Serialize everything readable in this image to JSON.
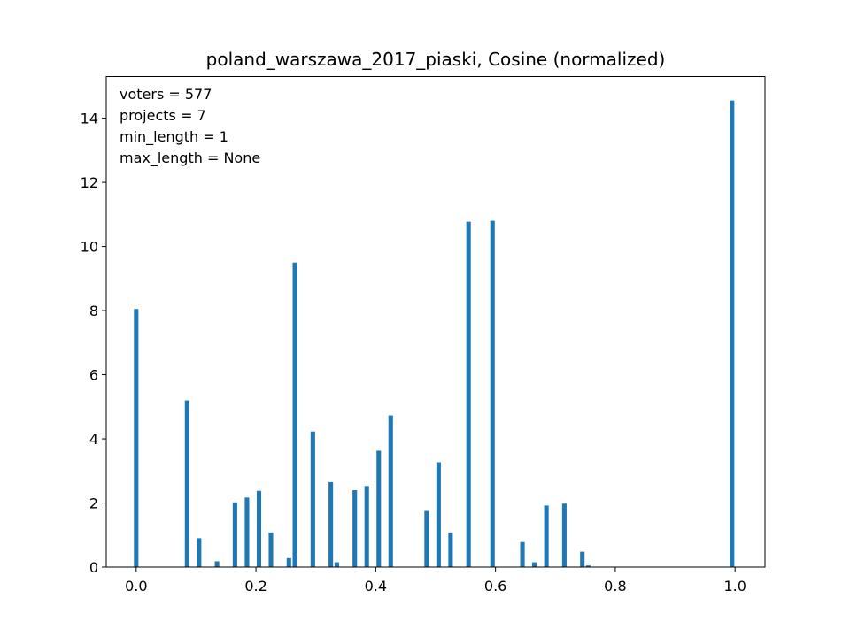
{
  "chart_data": {
    "type": "bar",
    "title": "poland_warszawa_2017_piaski, Cosine (normalized)",
    "xlabel": "",
    "ylabel": "",
    "xlim": [
      -0.05,
      1.05
    ],
    "ylim": [
      0,
      15.3
    ],
    "grid": false,
    "color": "#1f77b4",
    "bin_width": 0.01,
    "xticks": [
      0.0,
      0.2,
      0.4,
      0.6,
      0.8,
      1.0
    ],
    "xtick_labels": [
      "0.0",
      "0.2",
      "0.4",
      "0.6",
      "0.8",
      "1.0"
    ],
    "yticks": [
      0,
      2,
      4,
      6,
      8,
      10,
      12,
      14
    ],
    "ytick_labels": [
      "0",
      "2",
      "4",
      "6",
      "8",
      "10",
      "12",
      "14"
    ],
    "annotations": [
      "voters = 577",
      "projects = 7",
      "min_length = 1",
      "max_length = None"
    ],
    "x": [
      0.0,
      0.085,
      0.105,
      0.135,
      0.165,
      0.185,
      0.205,
      0.225,
      0.255,
      0.265,
      0.295,
      0.325,
      0.335,
      0.365,
      0.385,
      0.405,
      0.425,
      0.485,
      0.505,
      0.525,
      0.555,
      0.595,
      0.645,
      0.665,
      0.685,
      0.715,
      0.745,
      0.755,
      0.995
    ],
    "values": [
      8.05,
      5.2,
      0.9,
      0.18,
      2.02,
      2.17,
      2.38,
      1.08,
      0.28,
      9.5,
      4.23,
      2.65,
      0.15,
      2.4,
      2.53,
      3.63,
      4.73,
      1.75,
      3.27,
      1.08,
      10.77,
      10.8,
      0.78,
      0.15,
      1.92,
      1.98,
      0.48,
      0.05,
      14.55
    ]
  }
}
